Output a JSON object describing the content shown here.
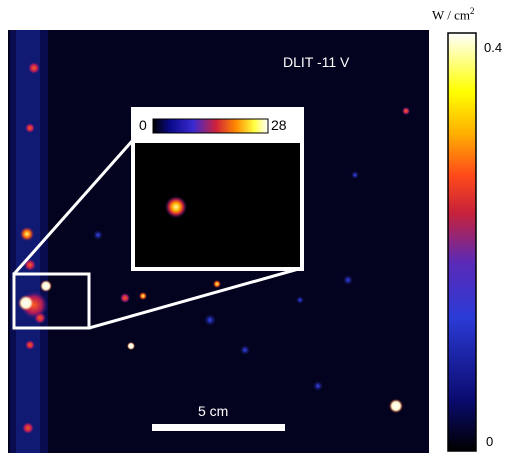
{
  "figure": {
    "label": "DLIT -11 V",
    "scale_bar_label": "5 cm",
    "colorbar": {
      "unit_prefix": "W / cm",
      "unit_exponent": "2",
      "max_label": "0.4",
      "min_label": "0",
      "colors": [
        "#000000",
        "#0a0a6e",
        "#2b3bd6",
        "#5a2ab8",
        "#c8223a",
        "#ff4a1a",
        "#ffb000",
        "#ffff00",
        "#ffffff"
      ]
    },
    "inset": {
      "min_label": "0",
      "max_label": "28"
    }
  }
}
